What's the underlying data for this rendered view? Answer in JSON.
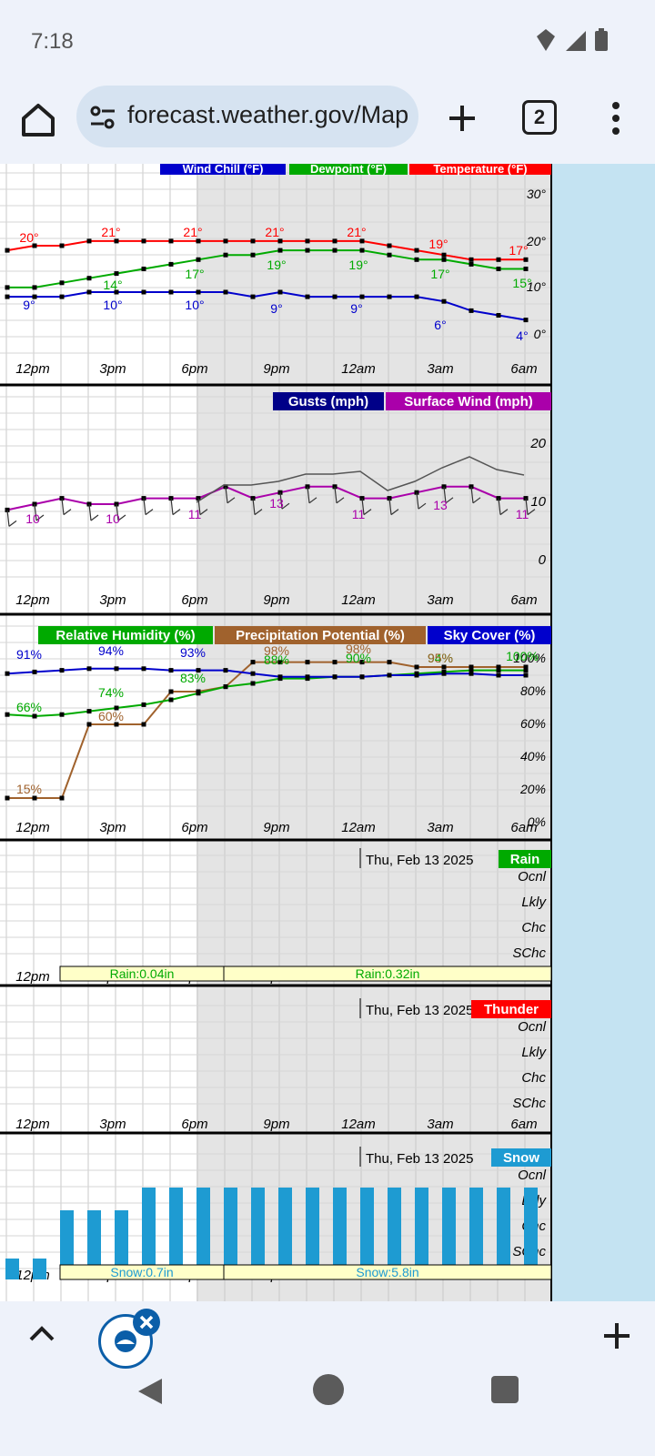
{
  "status": {
    "time": "7:18"
  },
  "browser": {
    "url": "forecast.weather.gov/MapClick.php",
    "tab_count": "2"
  },
  "graphs": {
    "x_labels": [
      "12pm",
      "3pm",
      "6pm",
      "9pm",
      "12am",
      "3am",
      "6am"
    ],
    "temperature": {
      "legend": [
        "Wind Chill (°F)",
        "Dewpoint (°F)",
        "Temperature (°F)"
      ],
      "y_ticks": [
        "30°",
        "20°",
        "10°",
        "0°"
      ],
      "temp_labels": [
        "20°",
        "21°",
        "21°",
        "21°",
        "21°",
        "19°",
        "17°"
      ],
      "dew_labels": [
        "14°",
        "17°",
        "19°",
        "19°",
        "17°",
        "15°"
      ],
      "chill_labels": [
        "9°",
        "10°",
        "10°",
        "9°",
        "9°",
        "6°",
        "4°"
      ],
      "colors": {
        "chill": "#0000cc",
        "dewpoint": "#00aa00",
        "temperature": "#ff0000"
      }
    },
    "wind": {
      "legend": [
        "Gusts (mph)",
        "Surface Wind (mph)"
      ],
      "y_ticks": [
        "20",
        "10",
        "0"
      ],
      "labels": [
        "10",
        "10",
        "11",
        "13",
        "11",
        "13",
        "11"
      ]
    },
    "humidity": {
      "legend": [
        "Relative Humidity (%)",
        "Precipitation Potential (%)",
        "Sky Cover (%)"
      ],
      "y_ticks": [
        "100%",
        "80%",
        "60%",
        "40%",
        "20%",
        "0%"
      ],
      "sky_labels": [
        "91%",
        "94%",
        "93%"
      ],
      "rh_labels": [
        "66%",
        "74%",
        "83%",
        "88%",
        "90%",
        "94%",
        "100%"
      ],
      "pop_labels": [
        "15%",
        "60%",
        "98%",
        "98%",
        "95%"
      ]
    },
    "rain": {
      "date": "Thu, Feb 13 2025",
      "title": "Rain",
      "levels": [
        "Ocnl",
        "Lkly",
        "Chc",
        "SChc"
      ],
      "totals": [
        "Rain:0.04in",
        "Rain:0.32in"
      ]
    },
    "thunder": {
      "date": "Thu, Feb 13 2025",
      "title": "Thunder",
      "levels": [
        "Ocnl",
        "Lkly",
        "Chc",
        "SChc"
      ]
    },
    "snow": {
      "date": "Thu, Feb 13 2025",
      "title": "Snow",
      "levels": [
        "Ocnl",
        "Lkly",
        "Chc",
        "SChc"
      ],
      "totals": [
        "Snow:0.7in",
        "Snow:5.8in"
      ]
    }
  }
}
